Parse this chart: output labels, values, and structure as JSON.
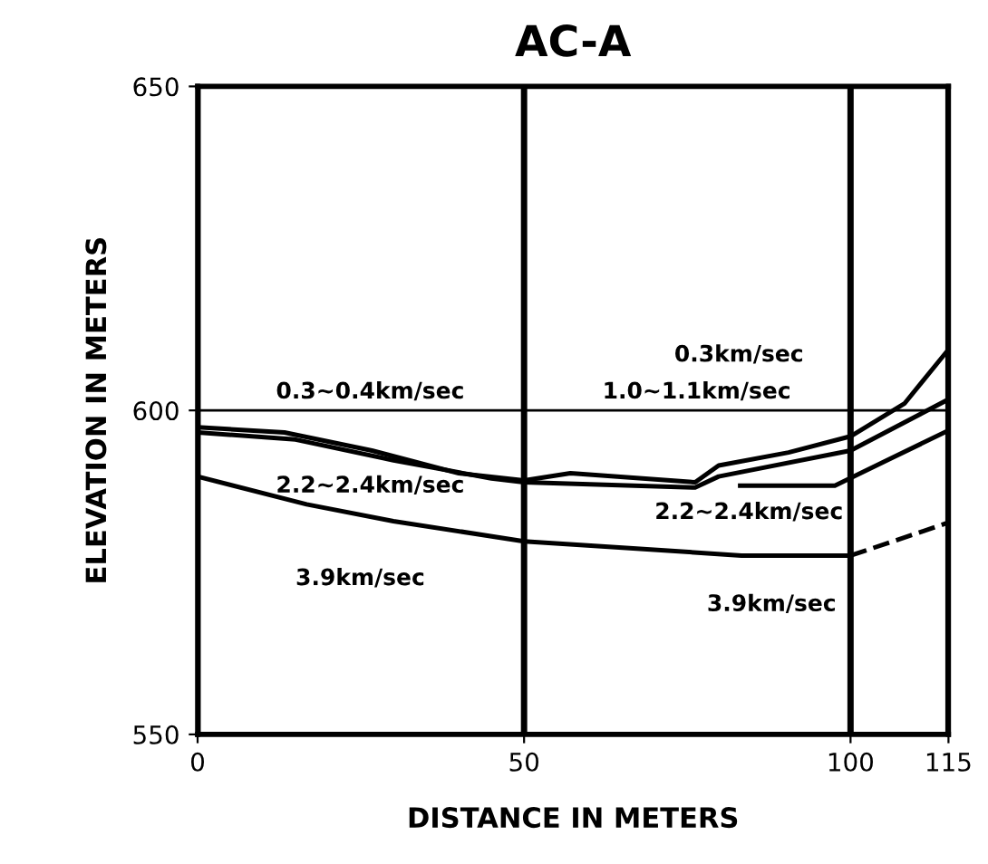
{
  "chart_data": {
    "type": "line",
    "title": "AC-A",
    "xlabel": "DISTANCE IN METERS",
    "ylabel": "ELEVATION IN METERS",
    "xlim": [
      0,
      115
    ],
    "xticks": [
      0,
      50,
      100,
      115
    ],
    "ylim": [
      550,
      650
    ],
    "yticks": [
      550,
      600,
      650
    ],
    "grid": "x",
    "ref_lines": [
      {
        "axis": "y",
        "value": 600,
        "color": "#000000"
      }
    ],
    "marker": "none",
    "series": [
      {
        "color": "#000000",
        "line_style": "solid",
        "x": [
          0,
          13.3,
          26.7,
          40,
          50,
          57.1,
          64.3,
          76.2,
          79.8,
          90.5,
          100,
          108.3,
          115
        ],
        "values": [
          597.4,
          596.6,
          593.8,
          590.3,
          589.2,
          590.3,
          589.8,
          588.9,
          591.5,
          593.5,
          596.0,
          601.1,
          609.4
        ]
      },
      {
        "color": "#000000",
        "line_style": "solid",
        "x": [
          0,
          15,
          30,
          45,
          50,
          76.2,
          79.8,
          100,
          115
        ],
        "values": [
          596.6,
          595.5,
          592.3,
          589.5,
          588.9,
          588.1,
          589.8,
          593.8,
          601.7
        ]
      },
      {
        "color": "#000000",
        "line_style": "solid",
        "x": [
          83.1,
          97.6,
          115
        ],
        "values": [
          588.4,
          588.4,
          596.9
        ]
      },
      {
        "color": "#000000",
        "line_style": "solid",
        "x": [
          0,
          16.7,
          30,
          50,
          66.7,
          83.3,
          100
        ],
        "values": [
          589.8,
          585.5,
          582.9,
          579.8,
          578.7,
          577.6,
          577.6
        ]
      },
      {
        "color": "#000000",
        "line_style": "dashed",
        "x": [
          100,
          108.3,
          115
        ],
        "values": [
          577.6,
          580.4,
          582.7
        ]
      }
    ],
    "annotations": [
      "0.3~0.4km/sec",
      "1.0~1.1km/sec",
      "0.3km/sec",
      "2.2~2.4km/sec",
      "2.2~2.4km/sec",
      "3.9km/sec",
      "3.9km/sec"
    ]
  }
}
